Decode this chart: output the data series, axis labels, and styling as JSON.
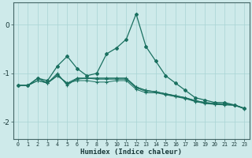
{
  "x": [
    0,
    1,
    2,
    3,
    4,
    5,
    6,
    7,
    8,
    9,
    10,
    11,
    12,
    13,
    14,
    15,
    16,
    17,
    18,
    19,
    20,
    21,
    22,
    23
  ],
  "main_series": [
    -1.25,
    -1.25,
    -1.1,
    -1.15,
    -0.85,
    -0.65,
    -0.9,
    -1.05,
    -1.0,
    -0.6,
    -0.48,
    -0.3,
    0.22,
    -0.45,
    -0.75,
    -1.05,
    -1.2,
    -1.35,
    -1.5,
    -1.55,
    -1.6,
    -1.6,
    -1.65,
    -1.72
  ],
  "bg_series": [
    [
      -1.25,
      -1.25,
      -1.15,
      -1.2,
      -1.05,
      -1.2,
      -1.1,
      -1.1,
      -1.1,
      -1.1,
      -1.1,
      -1.1,
      -1.28,
      -1.35,
      -1.38,
      -1.42,
      -1.46,
      -1.5,
      -1.56,
      -1.6,
      -1.62,
      -1.63,
      -1.65,
      -1.72
    ],
    [
      -1.25,
      -1.25,
      -1.15,
      -1.2,
      -1.05,
      -1.2,
      -1.15,
      -1.15,
      -1.18,
      -1.18,
      -1.15,
      -1.15,
      -1.33,
      -1.4,
      -1.4,
      -1.44,
      -1.48,
      -1.52,
      -1.58,
      -1.62,
      -1.64,
      -1.65,
      -1.66,
      -1.73
    ],
    [
      -1.25,
      -1.25,
      -1.1,
      -1.2,
      -1.02,
      -1.22,
      -1.12,
      -1.1,
      -1.12,
      -1.12,
      -1.12,
      -1.12,
      -1.3,
      -1.37,
      -1.38,
      -1.43,
      -1.47,
      -1.51,
      -1.57,
      -1.61,
      -1.63,
      -1.64,
      -1.65,
      -1.72
    ],
    [
      -1.25,
      -1.25,
      -1.1,
      -1.2,
      -1.0,
      -1.25,
      -1.1,
      -1.1,
      -1.1,
      -1.1,
      -1.1,
      -1.1,
      -1.28,
      -1.35,
      -1.38,
      -1.42,
      -1.46,
      -1.5,
      -1.56,
      -1.6,
      -1.62,
      -1.63,
      -1.65,
      -1.72
    ]
  ],
  "line_color": "#1a7060",
  "bg_color": "#ceeaea",
  "grid_color": "#a8d4d4",
  "xlabel": "Humidex (Indice chaleur)",
  "ylim": [
    -2.35,
    0.45
  ],
  "xlim": [
    -0.5,
    23.5
  ],
  "yticks": [
    0,
    -1,
    -2
  ],
  "xticks": [
    0,
    1,
    2,
    3,
    4,
    5,
    6,
    7,
    8,
    9,
    10,
    11,
    12,
    13,
    14,
    15,
    16,
    17,
    18,
    19,
    20,
    21,
    22,
    23
  ]
}
